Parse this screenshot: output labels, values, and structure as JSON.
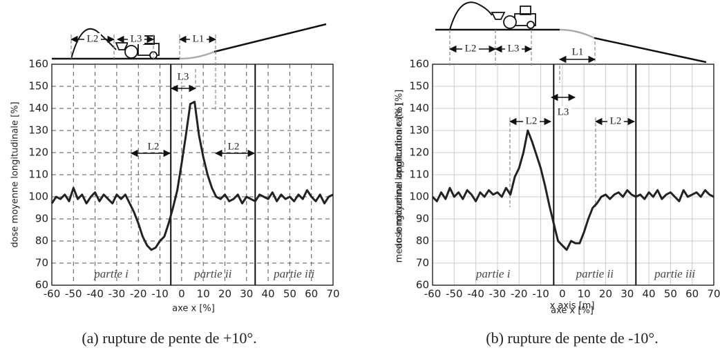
{
  "chart_data": [
    {
      "type": "line",
      "caption": "(a) rupture de pente de +10°.",
      "ylabel": [
        "dose moyenne longitudinale [%]"
      ],
      "xlabel": [
        "axe x [%]"
      ],
      "x": [
        -60,
        -58,
        -56,
        -54,
        -52,
        -50,
        -48,
        -46,
        -44,
        -42,
        -40,
        -38,
        -36,
        -34,
        -32,
        -30,
        -28,
        -26,
        -24,
        -22,
        -20,
        -18,
        -16,
        -14,
        -12,
        -10,
        -8,
        -6,
        -4,
        -2,
        0,
        2,
        4,
        6,
        8,
        10,
        12,
        14,
        16,
        18,
        20,
        22,
        24,
        26,
        28,
        30,
        32,
        34,
        36,
        38,
        40,
        42,
        44,
        46,
        48,
        50,
        52,
        54,
        56,
        58,
        60,
        62,
        64,
        66,
        68,
        70
      ],
      "series": [
        {
          "color": "#222222",
          "values": [
            97,
            100,
            99,
            101,
            98,
            104,
            99,
            101,
            97,
            100,
            102,
            98,
            101,
            99,
            97,
            101,
            99,
            101,
            97,
            93,
            88,
            82,
            78,
            76,
            77,
            80,
            82,
            88,
            95,
            103,
            115,
            128,
            142,
            143,
            128,
            118,
            110,
            104,
            100,
            99,
            101,
            98,
            99,
            101,
            97,
            100,
            99,
            98,
            101,
            100,
            99,
            102,
            98,
            101,
            99,
            100,
            98,
            101,
            99,
            103,
            100,
            98,
            101,
            97,
            100,
            101
          ]
        }
      ],
      "xlim": [
        -60,
        70
      ],
      "ylim": [
        60,
        160
      ],
      "xticks": [
        -60,
        -50,
        -40,
        -30,
        -20,
        -10,
        0,
        10,
        20,
        30,
        40,
        50,
        60,
        70
      ],
      "yticks": [
        60,
        70,
        80,
        90,
        100,
        110,
        120,
        130,
        140,
        150,
        160
      ],
      "grid": true,
      "grid_dashed": true,
      "boundaries": [
        -5,
        34
      ],
      "regions": [
        "partie i",
        "partie ii",
        "partie iii"
      ],
      "annotations": [
        "L2",
        "L3",
        "L1",
        "L3",
        "L2",
        "L2"
      ]
    },
    {
      "type": "line",
      "caption": "(b) rupture de pente de -10°.",
      "ylabel": [
        "mean longitudinal application rate [%]",
        "dose moyenne longitudinale [%]"
      ],
      "xlabel": [
        "x axis [m]",
        "axe x [%]"
      ],
      "x": [
        -60,
        -58,
        -56,
        -54,
        -52,
        -50,
        -48,
        -46,
        -44,
        -42,
        -40,
        -38,
        -36,
        -34,
        -32,
        -30,
        -28,
        -26,
        -24,
        -22,
        -20,
        -18,
        -16,
        -14,
        -12,
        -10,
        -8,
        -6,
        -4,
        -2,
        0,
        2,
        4,
        6,
        8,
        10,
        12,
        14,
        16,
        18,
        20,
        22,
        24,
        26,
        28,
        30,
        32,
        34,
        36,
        38,
        40,
        42,
        44,
        46,
        48,
        50,
        52,
        54,
        56,
        58,
        60,
        62,
        64,
        66,
        68,
        70
      ],
      "series": [
        {
          "color": "#222222",
          "values": [
            100,
            98,
            102,
            99,
            104,
            100,
            102,
            99,
            103,
            101,
            98,
            102,
            100,
            103,
            101,
            102,
            100,
            104,
            101,
            109,
            113,
            120,
            130,
            125,
            119,
            113,
            105,
            96,
            88,
            80,
            78,
            76,
            80,
            79,
            79,
            84,
            90,
            95,
            97,
            100,
            101,
            99,
            101,
            102,
            100,
            103,
            101,
            100,
            101,
            99,
            102,
            100,
            103,
            99,
            101,
            102,
            100,
            98,
            103,
            100,
            101,
            102,
            100,
            103,
            101,
            100
          ]
        }
      ],
      "xlim": [
        -60,
        70
      ],
      "ylim": [
        60,
        160
      ],
      "xticks": [
        -60,
        -50,
        -40,
        -30,
        -20,
        -10,
        0,
        10,
        20,
        30,
        40,
        50,
        60,
        70
      ],
      "yticks": [
        60,
        70,
        80,
        90,
        100,
        110,
        120,
        130,
        140,
        150,
        160
      ],
      "grid": true,
      "grid_dashed": false,
      "boundaries": [
        -4,
        34
      ],
      "regions": [
        "partie i",
        "partie ii",
        "partie iii"
      ],
      "annotations": [
        "L2",
        "L3",
        "L1",
        "L3",
        "L2",
        "L2"
      ]
    }
  ]
}
